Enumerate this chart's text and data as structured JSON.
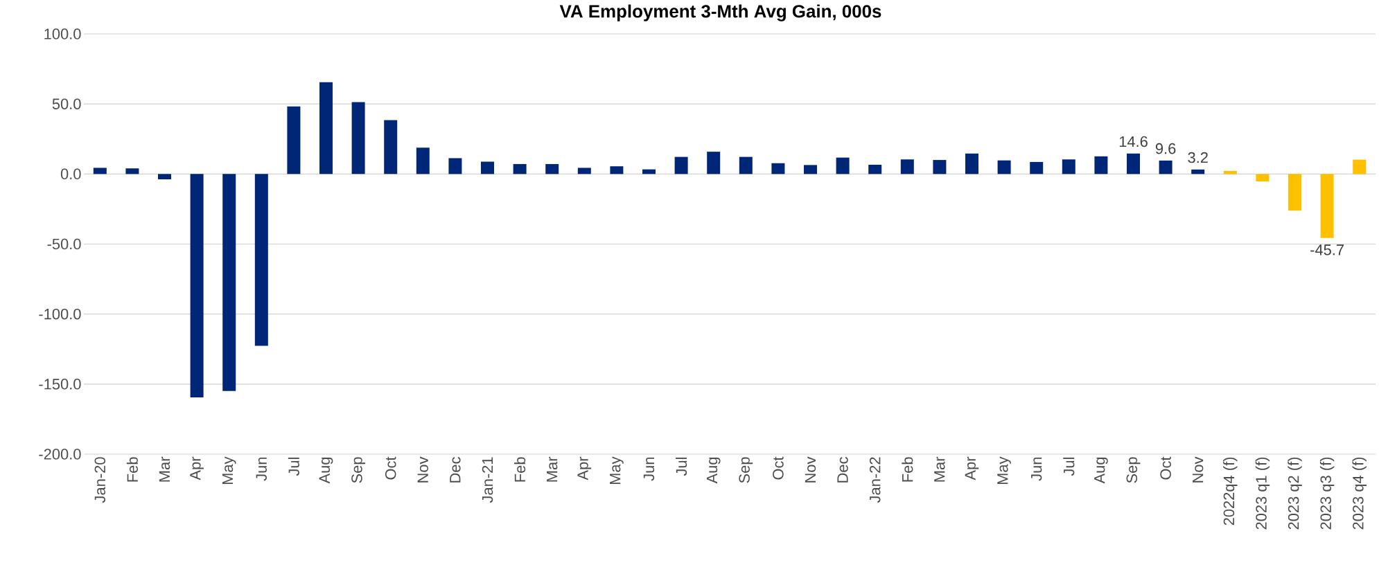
{
  "chart_data": {
    "type": "bar",
    "title": "VA Employment 3-Mth Avg Gain, 000s",
    "categories": [
      "Jan-20",
      "Feb",
      "Mar",
      "Apr",
      "May",
      "Jun",
      "Jul",
      "Aug",
      "Sep",
      "Oct",
      "Nov",
      "Dec",
      "Jan-21",
      "Feb",
      "Mar",
      "Apr",
      "May",
      "Jun",
      "Jul",
      "Aug",
      "Sep",
      "Oct",
      "Nov",
      "Dec",
      "Jan-22",
      "Feb",
      "Mar",
      "Apr",
      "May",
      "Jun",
      "Jul",
      "Aug",
      "Sep",
      "Oct",
      "Nov",
      "2022q4 (f)",
      "2023 q1 (f)",
      "2023 q2 (f)",
      "2023 q3 (f)",
      "2023 q4 (f)"
    ],
    "values": [
      4.4,
      4.0,
      -3.8,
      -159.5,
      -154.9,
      -122.6,
      48.2,
      65.5,
      51.3,
      38.5,
      18.8,
      11.3,
      8.8,
      7.1,
      7.1,
      4.4,
      5.5,
      3.3,
      12.2,
      15.9,
      12.2,
      7.7,
      6.4,
      11.7,
      6.6,
      10.4,
      10.0,
      14.6,
      9.7,
      8.6,
      10.4,
      12.6,
      14.6,
      9.6,
      3.2,
      2.2,
      -5.3,
      -26.1,
      -45.7,
      10.2
    ],
    "colors": [
      "#002677",
      "#002677",
      "#002677",
      "#002677",
      "#002677",
      "#002677",
      "#002677",
      "#002677",
      "#002677",
      "#002677",
      "#002677",
      "#002677",
      "#002677",
      "#002677",
      "#002677",
      "#002677",
      "#002677",
      "#002677",
      "#002677",
      "#002677",
      "#002677",
      "#002677",
      "#002677",
      "#002677",
      "#002677",
      "#002677",
      "#002677",
      "#002677",
      "#002677",
      "#002677",
      "#002677",
      "#002677",
      "#002677",
      "#002677",
      "#002677",
      "#ffc000",
      "#ffc000",
      "#ffc000",
      "#ffc000",
      "#ffc000"
    ],
    "value_labels": [
      null,
      null,
      null,
      null,
      null,
      null,
      null,
      null,
      null,
      null,
      null,
      null,
      null,
      null,
      null,
      null,
      null,
      null,
      null,
      null,
      null,
      null,
      null,
      null,
      null,
      null,
      null,
      null,
      null,
      null,
      null,
      null,
      "14.6",
      "9.6",
      "3.2",
      null,
      null,
      null,
      "-45.7",
      null
    ],
    "ylim": [
      -200,
      100
    ],
    "yticks": [
      {
        "value": -200,
        "label": "-200.0"
      },
      {
        "value": -150,
        "label": "-150.0"
      },
      {
        "value": -100,
        "label": "-100.0"
      },
      {
        "value": -50,
        "label": "-50.0"
      },
      {
        "value": 0,
        "label": "0.0"
      },
      {
        "value": 50,
        "label": "50.0"
      },
      {
        "value": 100,
        "label": "100.0"
      }
    ],
    "grid": "y"
  }
}
